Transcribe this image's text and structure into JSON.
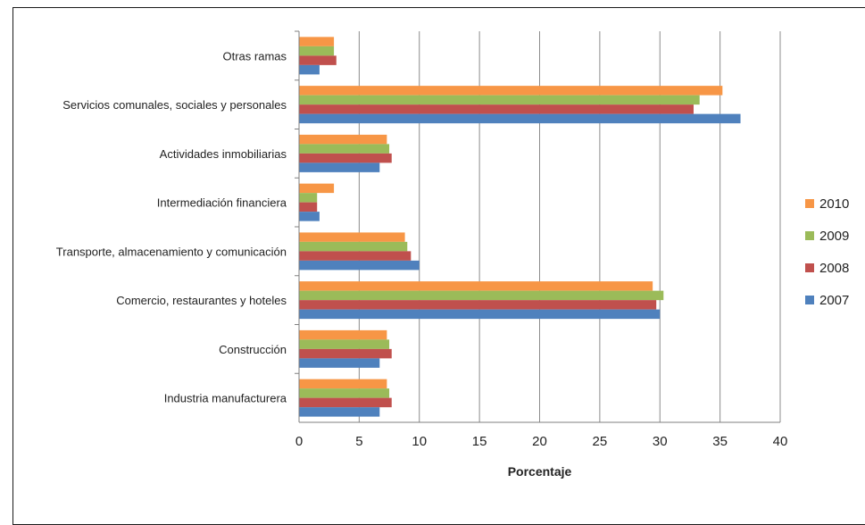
{
  "chart_data": {
    "type": "bar",
    "orientation": "horizontal",
    "title": "",
    "xlabel": "Porcentaje",
    "ylabel": "",
    "xlim": [
      0,
      40
    ],
    "xticks": [
      0,
      5,
      10,
      15,
      20,
      25,
      30,
      35,
      40
    ],
    "grid": "vertical",
    "legend_position": "right",
    "categories": [
      "Otras ramas",
      "Servicios comunales, sociales y personales",
      "Actividades inmobiliarias",
      "Intermediación financiera",
      "Transporte, almacenamiento y comunicación",
      "Comercio, restaurantes y hoteles",
      "Construcción",
      "Industria manufacturera"
    ],
    "series": [
      {
        "name": "2010",
        "color": "#F79646",
        "values": [
          2.9,
          35.2,
          7.3,
          2.9,
          8.8,
          29.4,
          7.3,
          7.3
        ]
      },
      {
        "name": "2009",
        "color": "#9BBB59",
        "values": [
          2.9,
          33.3,
          7.5,
          1.5,
          9.0,
          30.3,
          7.5,
          7.5
        ]
      },
      {
        "name": "2008",
        "color": "#C0504D",
        "values": [
          3.1,
          32.8,
          7.7,
          1.5,
          9.3,
          29.7,
          7.7,
          7.7
        ]
      },
      {
        "name": "2007",
        "color": "#4F81BD",
        "values": [
          1.7,
          36.7,
          6.7,
          1.7,
          10.0,
          30.0,
          6.7,
          6.7
        ]
      }
    ]
  }
}
